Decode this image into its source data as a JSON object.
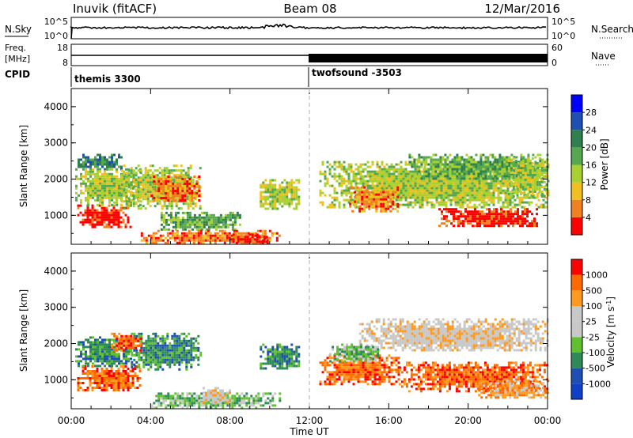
{
  "header": {
    "title": "Inuvik (fitACF)",
    "beam": "Beam 08",
    "date": "12/Mar/2016"
  },
  "top_panels": {
    "nsky_label": "N.Sky",
    "nsky_ticks": [
      "10^5",
      "10^0"
    ],
    "nsearch_label": "N.Search",
    "nsearch_ticks": [
      "10^5",
      "10^0"
    ],
    "freq_label": "Freq.",
    "freq_unit": "[MHz]",
    "freq_ticks": [
      "18",
      "8"
    ],
    "nave_label": "Nave",
    "nave_ticks": [
      "60",
      "0"
    ],
    "cpid_label": "CPID",
    "cpid_segments": [
      {
        "name": "themis 3300",
        "start_hour": 0
      },
      {
        "name": "twofsound -3503",
        "start_hour": 12
      }
    ]
  },
  "chart_data": [
    {
      "type": "heatmap",
      "name": "power",
      "ylabel": "Slant Range [km]",
      "xlabel": "",
      "ylim": [
        200,
        4500
      ],
      "xlim": [
        0,
        24
      ],
      "y_ticks": [
        "1000",
        "2000",
        "3000",
        "4000"
      ],
      "colorbar_label": "Power [dB]",
      "colorbar_ticks": [
        "28",
        "24",
        "20",
        "16",
        "12",
        "8",
        "4"
      ],
      "colorbar_colors": [
        "#0000ff",
        "#1e50b4",
        "#2f7f4f",
        "#56a850",
        "#a8d030",
        "#f0c020",
        "#f08020",
        "#ff0000"
      ],
      "regions": [
        {
          "x": [
            0.3,
            3.0
          ],
          "y": [
            700,
            1300
          ],
          "level": 7
        },
        {
          "x": [
            0.2,
            3.5
          ],
          "y": [
            1300,
            2300
          ],
          "level": 4
        },
        {
          "x": [
            0.2,
            2.5
          ],
          "y": [
            2300,
            2700
          ],
          "level": 2
        },
        {
          "x": [
            2.5,
            6.5
          ],
          "y": [
            1200,
            2400
          ],
          "level": 4
        },
        {
          "x": [
            4.0,
            6.5
          ],
          "y": [
            1400,
            2100
          ],
          "level": 6
        },
        {
          "x": [
            4.5,
            8.5
          ],
          "y": [
            600,
            1100
          ],
          "level": 3
        },
        {
          "x": [
            3.5,
            10.5
          ],
          "y": [
            250,
            600
          ],
          "level": 6
        },
        {
          "x": [
            8.0,
            10.0
          ],
          "y": [
            250,
            500
          ],
          "level": 7
        },
        {
          "x": [
            9.5,
            11.5
          ],
          "y": [
            1200,
            2000
          ],
          "level": 4
        },
        {
          "x": [
            12.5,
            24.0
          ],
          "y": [
            1200,
            2500
          ],
          "level": 4
        },
        {
          "x": [
            14.0,
            16.5
          ],
          "y": [
            1100,
            1800
          ],
          "level": 6
        },
        {
          "x": [
            18.5,
            23.5
          ],
          "y": [
            700,
            1200
          ],
          "level": 7
        },
        {
          "x": [
            17.0,
            24.0
          ],
          "y": [
            2000,
            2700
          ],
          "level": 3
        },
        {
          "x": [
            22.0,
            24.0
          ],
          "y": [
            1500,
            2600
          ],
          "level": 4
        }
      ]
    },
    {
      "type": "heatmap",
      "name": "velocity",
      "ylabel": "Slant Range [km]",
      "xlabel": "Time UT",
      "ylim": [
        200,
        4500
      ],
      "xlim": [
        0,
        24
      ],
      "y_ticks": [
        "1000",
        "2000",
        "3000",
        "4000"
      ],
      "x_ticks": [
        "00:00",
        "04:00",
        "08:00",
        "12:00",
        "16:00",
        "20:00",
        "00:00"
      ],
      "colorbar_label": "Velocity [m s^-1]",
      "colorbar_ticks": [
        "1000",
        "500",
        "100",
        "25",
        "-25",
        "-100",
        "-500",
        "-1000"
      ],
      "colorbar_colors": [
        "#ff0000",
        "#ff6a00",
        "#ff9a20",
        "#c8c8c8",
        "#c8c8c8",
        "#60c030",
        "#2e8b57",
        "#1e50b4",
        "#1040c8"
      ],
      "regions": [
        {
          "x": [
            0.3,
            3.5
          ],
          "y": [
            700,
            1400
          ],
          "level": 1
        },
        {
          "x": [
            0.2,
            3.0
          ],
          "y": [
            1400,
            2200
          ],
          "level": 6
        },
        {
          "x": [
            3.0,
            6.5
          ],
          "y": [
            1300,
            2300
          ],
          "level": 6
        },
        {
          "x": [
            2.0,
            3.5
          ],
          "y": [
            1800,
            2300
          ],
          "level": 1
        },
        {
          "x": [
            4.0,
            10.5
          ],
          "y": [
            250,
            650
          ],
          "level": 5
        },
        {
          "x": [
            6.5,
            8.0
          ],
          "y": [
            400,
            800
          ],
          "level": 3
        },
        {
          "x": [
            9.5,
            11.5
          ],
          "y": [
            1300,
            2000
          ],
          "level": 6
        },
        {
          "x": [
            12.5,
            16.5
          ],
          "y": [
            900,
            1700
          ],
          "level": 1
        },
        {
          "x": [
            16.5,
            24.0
          ],
          "y": [
            700,
            1500
          ],
          "level": 1
        },
        {
          "x": [
            14.5,
            24.0
          ],
          "y": [
            1800,
            2700
          ],
          "level": 3
        },
        {
          "x": [
            13.0,
            15.5
          ],
          "y": [
            1500,
            2000
          ],
          "level": 5
        },
        {
          "x": [
            20.5,
            24.0
          ],
          "y": [
            500,
            1000
          ],
          "level": 2
        }
      ]
    }
  ]
}
